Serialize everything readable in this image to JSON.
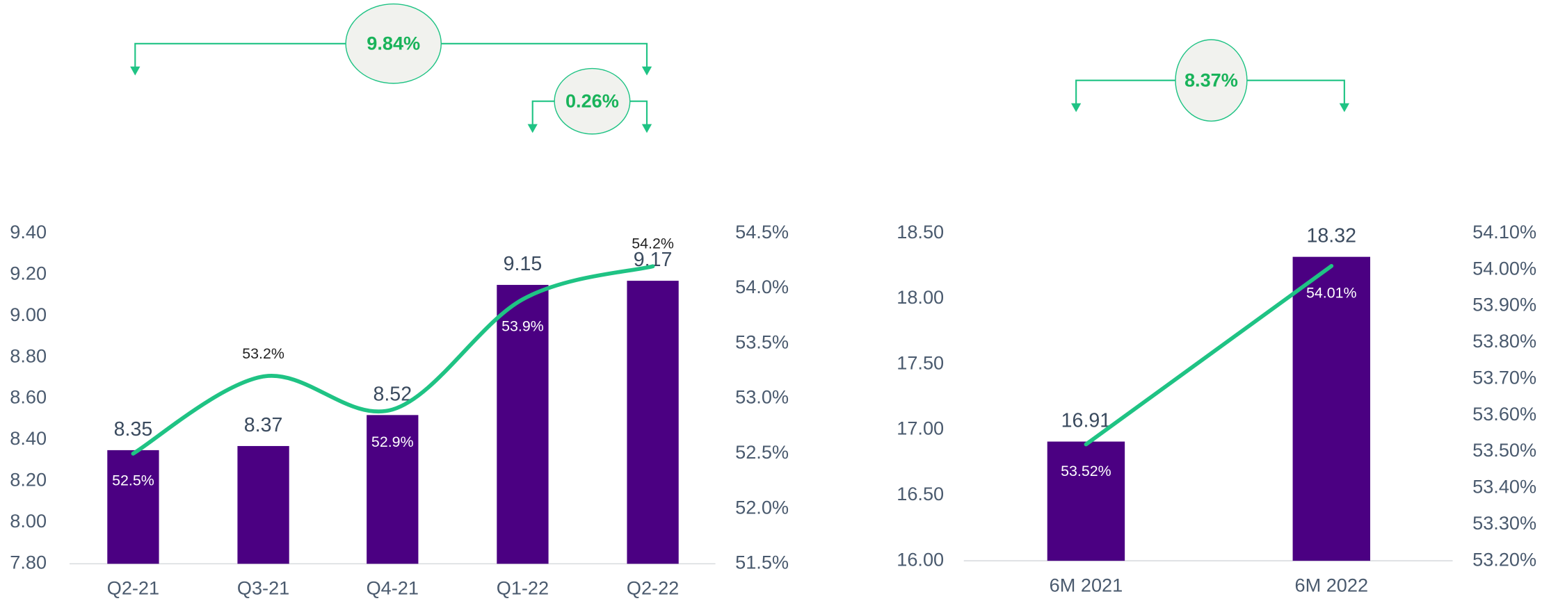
{
  "chart_data": [
    {
      "type": "bar",
      "categories": [
        "Q2-21",
        "Q3-21",
        "Q4-21",
        "Q1-22",
        "Q2-22"
      ],
      "series": [
        {
          "name": null,
          "color": "#4b0082",
          "values": [
            8.35,
            8.37,
            8.52,
            9.15,
            9.17
          ]
        },
        {
          "name": null,
          "color": "#1fc384",
          "axis": "y2",
          "values": [
            52.5,
            53.2,
            52.9,
            53.9,
            54.2
          ],
          "value_labels": [
            "52.5%",
            "53.2%",
            "52.9%",
            "53.9%",
            "54.2%"
          ]
        }
      ],
      "ylim": [
        7.8,
        9.4
      ],
      "yticks": [
        {
          "value": 7.8,
          "label": "7.80"
        },
        {
          "value": 8.0,
          "label": "8.00"
        },
        {
          "value": 8.2,
          "label": "8.20"
        },
        {
          "value": 8.4,
          "label": "8.40"
        },
        {
          "value": 8.6,
          "label": "8.60"
        },
        {
          "value": 8.8,
          "label": "8.80"
        },
        {
          "value": 9.0,
          "label": "9.00"
        },
        {
          "value": 9.2,
          "label": "9.20"
        },
        {
          "value": 9.4,
          "label": "9.40"
        }
      ],
      "y2lim": [
        51.5,
        54.5
      ],
      "y2ticks": [
        {
          "value": 51.5,
          "label": "51.5%"
        },
        {
          "value": 52.0,
          "label": "52.0%"
        },
        {
          "value": 52.5,
          "label": "52.5%"
        },
        {
          "value": 53.0,
          "label": "53.0%"
        },
        {
          "value": 53.5,
          "label": "53.5%"
        },
        {
          "value": 54.0,
          "label": "54.0%"
        },
        {
          "value": 54.5,
          "label": "54.5%"
        }
      ],
      "annotations": [
        "9.84%",
        "0.26%"
      ]
    },
    {
      "type": "bar",
      "categories": [
        "6M 2021",
        "6M 2022"
      ],
      "series": [
        {
          "name": null,
          "color": "#4b0082",
          "values": [
            16.91,
            18.32
          ]
        },
        {
          "name": null,
          "color": "#1fc384",
          "axis": "y2",
          "values": [
            53.52,
            54.01
          ],
          "value_labels": [
            "53.52%",
            "54.01%"
          ]
        }
      ],
      "ylim": [
        16.0,
        18.5
      ],
      "yticks": [
        {
          "value": 16.0,
          "label": "16.00"
        },
        {
          "value": 16.5,
          "label": "16.50"
        },
        {
          "value": 17.0,
          "label": "17.00"
        },
        {
          "value": 17.5,
          "label": "17.50"
        },
        {
          "value": 18.0,
          "label": "18.00"
        },
        {
          "value": 18.5,
          "label": "18.50"
        }
      ],
      "y2lim": [
        53.2,
        54.1
      ],
      "y2ticks": [
        {
          "value": 53.2,
          "label": "53.20%"
        },
        {
          "value": 53.3,
          "label": "53.30%"
        },
        {
          "value": 53.4,
          "label": "53.40%"
        },
        {
          "value": 53.5,
          "label": "53.50%"
        },
        {
          "value": 53.6,
          "label": "53.60%"
        },
        {
          "value": 53.7,
          "label": "53.70%"
        },
        {
          "value": 53.8,
          "label": "53.80%"
        },
        {
          "value": 53.9,
          "label": "53.90%"
        },
        {
          "value": 54.0,
          "label": "54.00%"
        },
        {
          "value": 54.1,
          "label": "54.10%"
        }
      ],
      "annotations": [
        "8.37%"
      ]
    }
  ]
}
